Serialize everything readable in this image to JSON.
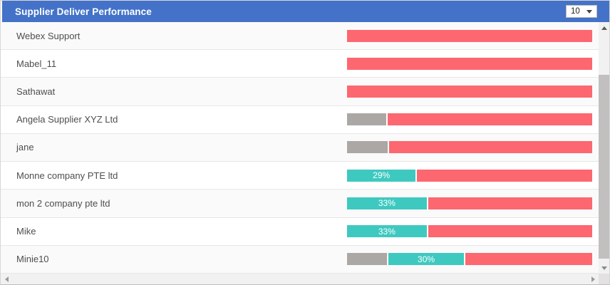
{
  "panel": {
    "title": "Supplier Deliver Performance",
    "page_size_dropdown": {
      "value": "10"
    }
  },
  "colors": {
    "header": "#4372c8",
    "late": "#fc6770",
    "ontime": "#3ec9c0",
    "nodata": "#aba7a5"
  },
  "rows": [
    {
      "label": "Webex Support",
      "segments": [
        {
          "kind": "late",
          "fill": true
        }
      ]
    },
    {
      "label": "Mabel_11",
      "segments": [
        {
          "kind": "late",
          "fill": true
        }
      ]
    },
    {
      "label": "Sathawat",
      "segments": [
        {
          "kind": "late",
          "fill": true
        }
      ]
    },
    {
      "label": "Angela Supplier XYZ Ltd",
      "segments": [
        {
          "kind": "nodata",
          "width": 16
        },
        {
          "kind": "late",
          "fill": true
        }
      ]
    },
    {
      "label": "jane",
      "segments": [
        {
          "kind": "nodata",
          "width": 16.5
        },
        {
          "kind": "late",
          "fill": true
        }
      ]
    },
    {
      "label": "Monne company PTE ltd",
      "segments": [
        {
          "kind": "ontime",
          "width": 28,
          "label": "29%"
        },
        {
          "kind": "late",
          "fill": true
        }
      ]
    },
    {
      "label": "mon 2 company pte ltd",
      "segments": [
        {
          "kind": "ontime",
          "width": 32.5,
          "label": "33%"
        },
        {
          "kind": "late",
          "fill": true
        }
      ]
    },
    {
      "label": "Mike",
      "segments": [
        {
          "kind": "ontime",
          "width": 32.5,
          "label": "33%"
        },
        {
          "kind": "late",
          "fill": true
        }
      ]
    },
    {
      "label": "Minie10",
      "segments": [
        {
          "kind": "nodata",
          "width": 16.3
        },
        {
          "kind": "ontime",
          "width": 30.8,
          "label": "30%"
        },
        {
          "kind": "late",
          "fill": true
        }
      ]
    }
  ],
  "chart_data": {
    "type": "bar",
    "orientation": "horizontal-stacked",
    "title": "Supplier Deliver Performance",
    "categories": [
      "Webex Support",
      "Mabel_11",
      "Sathawat",
      "Angela Supplier XYZ Ltd",
      "jane",
      "Monne company PTE ltd",
      "mon 2 company pte ltd",
      "Mike",
      "Minie10"
    ],
    "series": [
      {
        "name": "no-data",
        "color": "#aba7a5",
        "values": [
          0,
          0,
          0,
          16,
          16.5,
          0,
          0,
          0,
          16.3
        ]
      },
      {
        "name": "on-time",
        "color": "#3ec9c0",
        "values": [
          0,
          0,
          0,
          0,
          0,
          29,
          33,
          33,
          30
        ],
        "data_labels": [
          "",
          "",
          "",
          "",
          "",
          "29%",
          "33%",
          "33%",
          "30%"
        ]
      },
      {
        "name": "late",
        "color": "#fc6770",
        "values": [
          100,
          100,
          100,
          84,
          83.5,
          71,
          67,
          67,
          53.7
        ]
      }
    ],
    "value_unit": "%",
    "xlim": [
      0,
      100
    ],
    "grid": false,
    "legend": false
  }
}
